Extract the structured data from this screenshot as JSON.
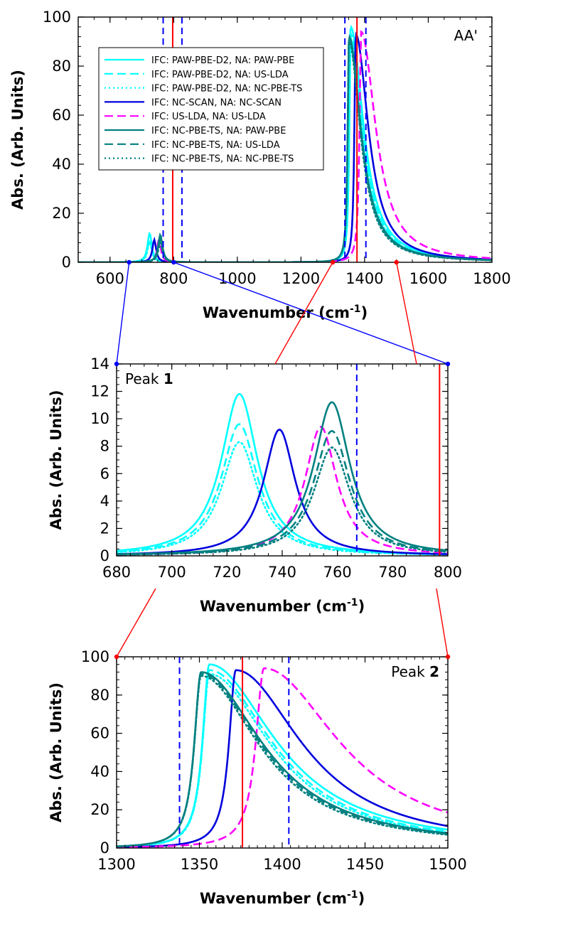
{
  "styles": {
    "PAW-PBE": {
      "color": "#00ffff",
      "dash": "",
      "width": 2.6
    },
    "US-LDA": {
      "color": "#00ffff",
      "dash": "12,6",
      "width": 2.6
    },
    "NC-PBE-TS": {
      "color": "#00ffff",
      "dash": "2,4",
      "width": 2.6
    }
  },
  "series_styles": [
    {
      "color": "#00ffff",
      "dash": "",
      "width": 2.6
    },
    {
      "color": "#00ffff",
      "dash": "12,6",
      "width": 2.6
    },
    {
      "color": "#00ffff",
      "dash": "2,4",
      "width": 2.6
    },
    {
      "color": "#0000dd",
      "dash": "",
      "width": 2.6
    },
    {
      "color": "#ff00ff",
      "dash": "12,6",
      "width": 2.6
    },
    {
      "color": "#008080",
      "dash": "",
      "width": 2.6
    },
    {
      "color": "#008080",
      "dash": "12,6",
      "width": 2.6
    },
    {
      "color": "#008080",
      "dash": "2,4",
      "width": 2.6
    }
  ],
  "zoom_colors": {
    "peak1": "#0000ff",
    "peak2": "#ff0000"
  },
  "chart_data": [
    {
      "id": "overview",
      "type": "line",
      "annotation": "AA'",
      "xlabel": "Wavenumber (cm",
      "xlabel_sup": "-1",
      "xlabel_close": ")",
      "ylabel": "Abs. (Arb. Units)",
      "xlim": [
        500,
        1800
      ],
      "ylim": [
        0,
        100
      ],
      "xticks": [
        600,
        800,
        1000,
        1200,
        1400,
        1600,
        1800
      ],
      "yticks": [
        0,
        20,
        40,
        60,
        80,
        100
      ],
      "legend_position": "top-left",
      "series": [
        {
          "name": "IFC: PAW-PBE-D2, NA: PAW-PBE",
          "peaks": [
            [
              724.5,
              11.8,
              8,
              8
            ],
            [
              1356,
              96,
              5,
              48
            ]
          ]
        },
        {
          "name": "IFC: PAW-PBE-D2, NA: US-LDA",
          "peaks": [
            [
              724.5,
              9.6,
              8,
              8
            ],
            [
              1356,
              93,
              5,
              46
            ]
          ]
        },
        {
          "name": "IFC: PAW-PBE-D2, NA: NC-PBE-TS",
          "peaks": [
            [
              724.5,
              8.3,
              8,
              8
            ],
            [
              1356,
              91,
              5,
              45
            ]
          ]
        },
        {
          "name": "IFC: NC-SCAN, NA: NC-SCAN",
          "peaks": [
            [
              739,
              9.2,
              7,
              7
            ],
            [
              1372,
              93,
              5,
              48
            ]
          ]
        },
        {
          "name": "IFC: US-LDA, NA: US-LDA",
          "peaks": [
            [
              754,
              9.4,
              7,
              7
            ],
            [
              1389,
              94,
              6,
              55
            ]
          ]
        },
        {
          "name": "IFC: NC-PBE-TS, NA: PAW-PBE",
          "peaks": [
            [
              758,
              11.2,
              8,
              8
            ],
            [
              1351,
              92,
              5,
              45
            ]
          ]
        },
        {
          "name": "IFC: NC-PBE-TS, NA: US-LDA",
          "peaks": [
            [
              758,
              9.1,
              8,
              8
            ],
            [
              1351,
              91,
              5,
              44
            ]
          ]
        },
        {
          "name": "IFC: NC-PBE-TS, NA: NC-PBE-TS",
          "peaks": [
            [
              758,
              7.9,
              8,
              8
            ],
            [
              1351,
              90,
              5,
              43
            ]
          ]
        }
      ],
      "vlines": [
        {
          "x": 767,
          "style": "dashed",
          "color": "#0000ff"
        },
        {
          "x": 797,
          "style": "solid",
          "color": "#ff0000"
        },
        {
          "x": 826,
          "style": "dashed",
          "color": "#0000ff"
        },
        {
          "x": 1338,
          "style": "dashed",
          "color": "#0000ff"
        },
        {
          "x": 1376,
          "style": "solid",
          "color": "#ff0000"
        },
        {
          "x": 1404,
          "style": "dashed",
          "color": "#0000ff"
        }
      ],
      "zoom_markers": [
        660,
        800,
        1300,
        1500
      ]
    },
    {
      "id": "peak1",
      "type": "line",
      "annotation": "Peak ",
      "annotation_bold": "1",
      "xlabel": "Wavenumber (cm",
      "xlabel_sup": "-1",
      "xlabel_close": ")",
      "ylabel": "Abs. (Arb. Units)",
      "xlim": [
        680,
        800
      ],
      "ylim": [
        0,
        14
      ],
      "xticks": [
        680,
        700,
        720,
        740,
        760,
        780,
        800
      ],
      "yticks": [
        0,
        2,
        4,
        6,
        8,
        10,
        12,
        14
      ],
      "vlines": [
        {
          "x": 767,
          "style": "dashed",
          "color": "#0000ff"
        },
        {
          "x": 797,
          "style": "solid",
          "color": "#ff0000"
        }
      ]
    },
    {
      "id": "peak2",
      "type": "line",
      "annotation": "Peak ",
      "annotation_bold": "2",
      "xlabel": "Wavenumber (cm",
      "xlabel_sup": "-1",
      "xlabel_close": ")",
      "ylabel": "Abs. (Arb. Units)",
      "xlim": [
        1300,
        1500
      ],
      "ylim": [
        0,
        100
      ],
      "xticks": [
        1300,
        1350,
        1400,
        1450,
        1500
      ],
      "yticks": [
        0,
        20,
        40,
        60,
        80,
        100
      ],
      "vlines": [
        {
          "x": 1338,
          "style": "dashed",
          "color": "#0000ff"
        },
        {
          "x": 1376,
          "style": "solid",
          "color": "#ff0000"
        },
        {
          "x": 1404,
          "style": "dashed",
          "color": "#0000ff"
        }
      ]
    }
  ]
}
